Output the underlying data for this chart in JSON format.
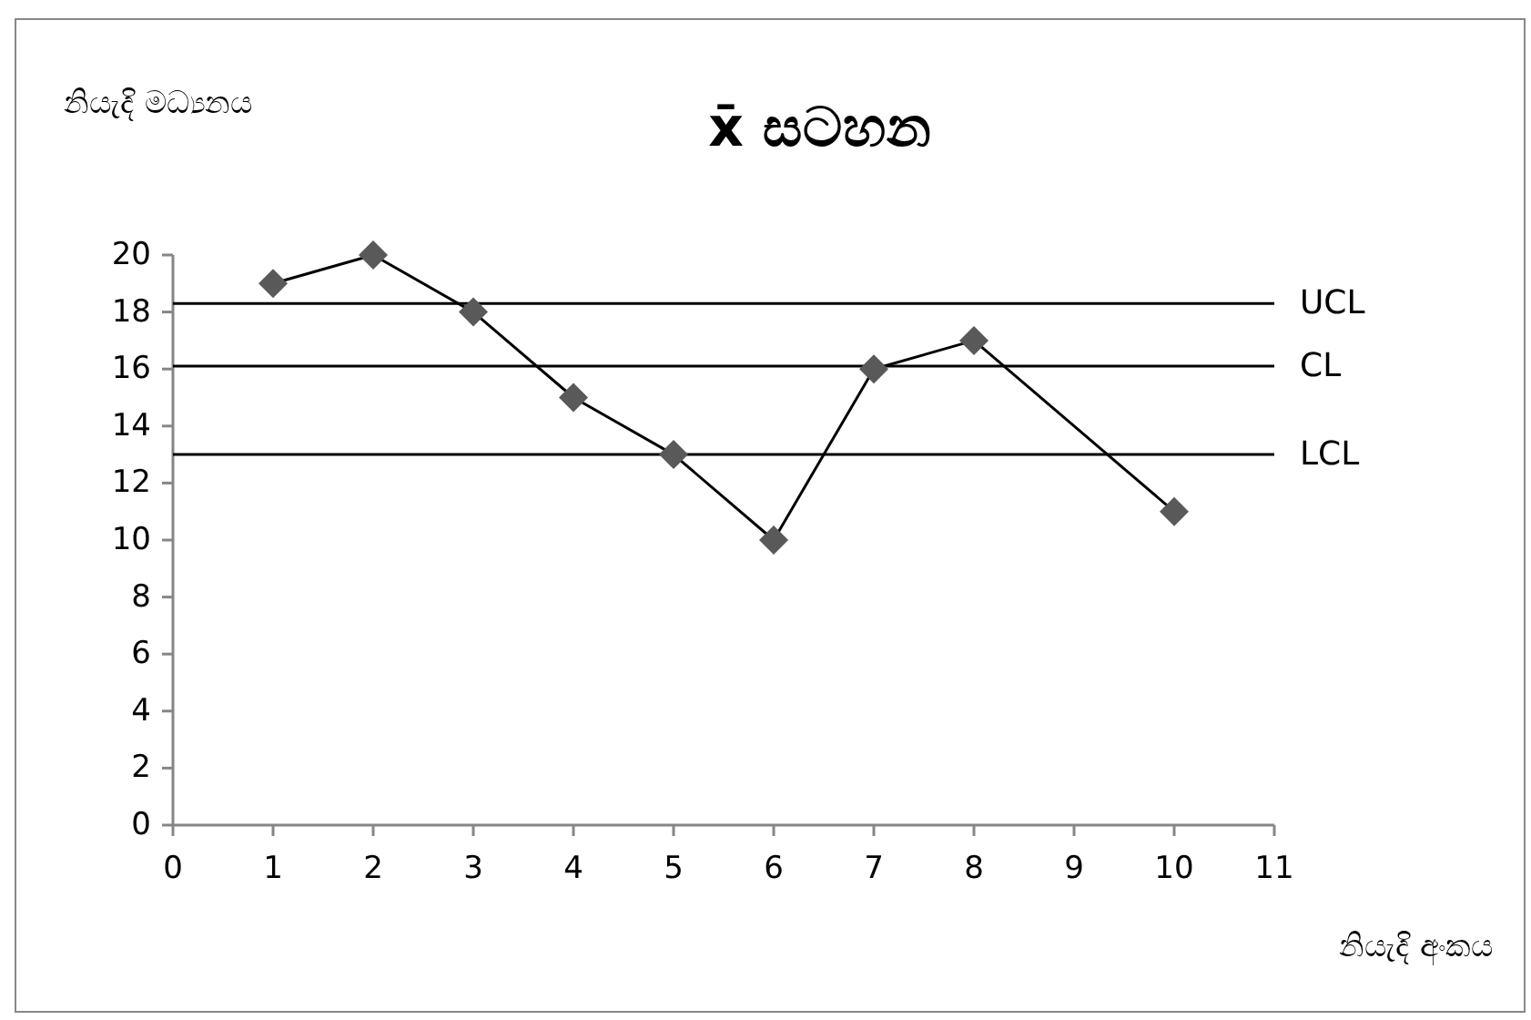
{
  "chart_data": {
    "type": "line",
    "title": "x̄ සටහන",
    "xlabel": "නියැදි අංකය",
    "ylabel": "නියැදි මධ්‍යනය",
    "x": [
      1,
      2,
      3,
      4,
      5,
      6,
      7,
      8,
      10
    ],
    "series": [
      {
        "color": "#595959",
        "values": [
          19,
          20,
          18,
          15,
          13,
          10,
          16,
          17,
          11
        ]
      }
    ],
    "xlim": [
      0,
      11
    ],
    "xticks": [
      0,
      1,
      2,
      3,
      4,
      5,
      6,
      7,
      8,
      9,
      10,
      11
    ],
    "ylim": [
      0,
      20
    ],
    "yticks": [
      0,
      2,
      4,
      6,
      8,
      10,
      12,
      14,
      16,
      18,
      20
    ],
    "ref_lines": [
      {
        "axis": "y",
        "value": 18.3,
        "label": "UCL"
      },
      {
        "axis": "y",
        "value": 16.1,
        "label": "CL"
      },
      {
        "axis": "y",
        "value": 13,
        "label": "LCL"
      }
    ],
    "marker": "diamond",
    "line_style": "solid"
  }
}
